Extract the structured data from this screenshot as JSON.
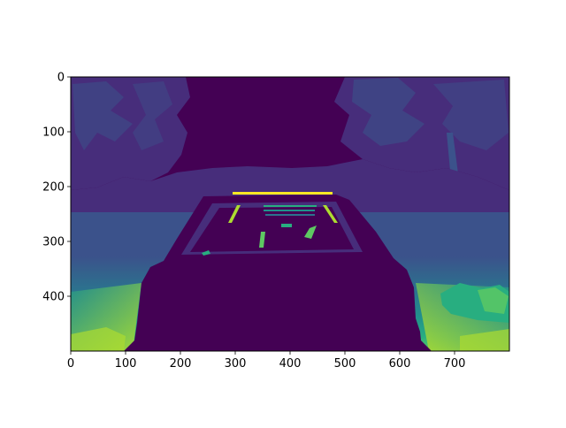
{
  "image": {
    "kind": "depth-map",
    "colormap": "viridis",
    "colors": {
      "dark": "#440154",
      "purple": "#472d7b",
      "blue_purple": "#3b528b",
      "blue": "#2c728e",
      "teal": "#21918c",
      "green": "#28ae80",
      "light_green": "#5ec962",
      "yellow_green": "#addc30",
      "yellow": "#fde725"
    }
  },
  "axes": {
    "x_ticks": [
      "0",
      "100",
      "200",
      "300",
      "400",
      "500",
      "600",
      "700"
    ],
    "y_ticks": [
      "0",
      "100",
      "200",
      "300",
      "400"
    ],
    "x_range": [
      0,
      800
    ],
    "y_range": [
      0,
      500
    ]
  }
}
